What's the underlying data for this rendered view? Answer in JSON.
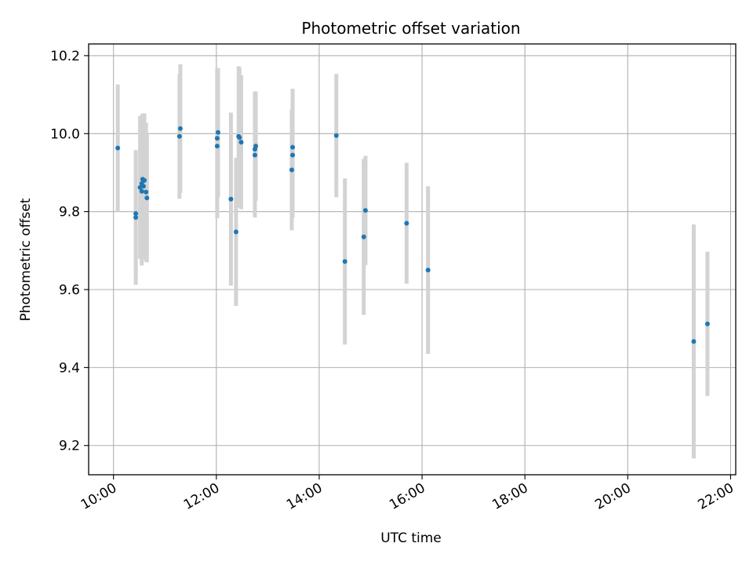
{
  "chart_data": {
    "type": "scatter",
    "title": "Photometric offset variation",
    "xlabel": "UTC time",
    "ylabel": "Photometric offset",
    "x_unit": "hours UTC",
    "xlim": [
      "09:31",
      "22:06"
    ],
    "ylim": [
      9.125,
      10.23
    ],
    "grid": true,
    "xticks": [
      "10:00",
      "12:00",
      "14:00",
      "16:00",
      "18:00",
      "20:00",
      "22:00"
    ],
    "yticks": [
      9.2,
      9.4,
      9.6,
      9.8,
      10.0,
      10.2
    ],
    "marker_color": "#1f77b4",
    "errorbar_color": "#d3d3d3",
    "points": [
      {
        "x": "10:05",
        "y": 9.963,
        "err": 0.163
      },
      {
        "x": "10:26",
        "y": 9.785,
        "err": 0.173
      },
      {
        "x": "10:26",
        "y": 9.795,
        "err": 0.16
      },
      {
        "x": "10:31",
        "y": 9.862,
        "err": 0.183
      },
      {
        "x": "10:33",
        "y": 9.852,
        "err": 0.19
      },
      {
        "x": "10:33",
        "y": 9.872,
        "err": 0.175
      },
      {
        "x": "10:34",
        "y": 9.883,
        "err": 0.168
      },
      {
        "x": "10:35",
        "y": 9.865,
        "err": 0.185
      },
      {
        "x": "10:36",
        "y": 9.88,
        "err": 0.172
      },
      {
        "x": "10:38",
        "y": 9.85,
        "err": 0.178
      },
      {
        "x": "10:39",
        "y": 9.835,
        "err": 0.165
      },
      {
        "x": "11:17",
        "y": 9.993,
        "err": 0.16
      },
      {
        "x": "11:18",
        "y": 10.013,
        "err": 0.165
      },
      {
        "x": "12:01",
        "y": 9.968,
        "err": 0.185
      },
      {
        "x": "12:01",
        "y": 9.988,
        "err": 0.18
      },
      {
        "x": "12:02",
        "y": 10.003,
        "err": 0.165
      },
      {
        "x": "12:17",
        "y": 9.832,
        "err": 0.222
      },
      {
        "x": "12:23",
        "y": 9.748,
        "err": 0.19
      },
      {
        "x": "12:26",
        "y": 9.993,
        "err": 0.18
      },
      {
        "x": "12:27",
        "y": 9.99,
        "err": 0.18
      },
      {
        "x": "12:29",
        "y": 9.978,
        "err": 0.172
      },
      {
        "x": "12:45",
        "y": 9.945,
        "err": 0.16
      },
      {
        "x": "12:45",
        "y": 9.96,
        "err": 0.148
      },
      {
        "x": "12:46",
        "y": 9.968,
        "err": 0.14
      },
      {
        "x": "13:28",
        "y": 9.907,
        "err": 0.155
      },
      {
        "x": "13:29",
        "y": 9.945,
        "err": 0.16
      },
      {
        "x": "13:29",
        "y": 9.965,
        "err": 0.15
      },
      {
        "x": "14:20",
        "y": 9.995,
        "err": 0.158
      },
      {
        "x": "14:30",
        "y": 9.672,
        "err": 0.213
      },
      {
        "x": "14:52",
        "y": 9.735,
        "err": 0.2
      },
      {
        "x": "14:54",
        "y": 9.803,
        "err": 0.14
      },
      {
        "x": "15:42",
        "y": 9.77,
        "err": 0.155
      },
      {
        "x": "16:07",
        "y": 9.65,
        "err": 0.215
      },
      {
        "x": "21:17",
        "y": 9.467,
        "err": 0.3
      },
      {
        "x": "21:33",
        "y": 9.512,
        "err": 0.185
      }
    ]
  }
}
